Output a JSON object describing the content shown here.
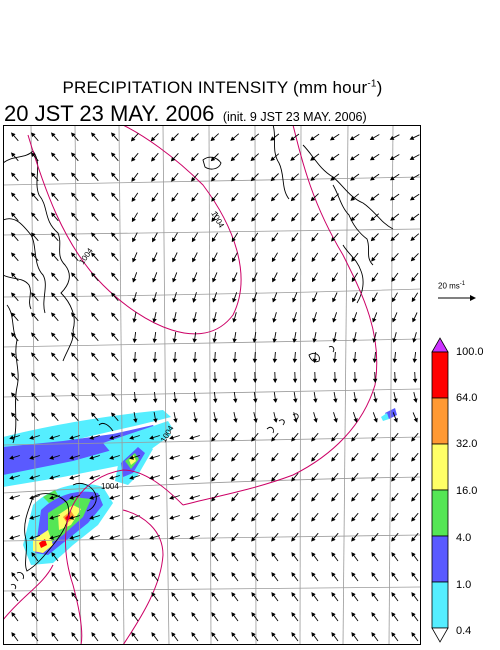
{
  "title": {
    "main": "PRECIPITATION INTENSITY (mm hour",
    "exp": "-1",
    "close": ")"
  },
  "subtitle": {
    "valid": "20 JST 23 MAY. 2006",
    "init": "(init. 9 JST 23 MAY. 2006)"
  },
  "reference_vector": {
    "label": "20 ms",
    "exp": "-1",
    "speed": 20
  },
  "colorbar": {
    "levels": [
      "100.0",
      "64.0",
      "32.0",
      "16.0",
      "4.0",
      "1.0",
      "0.4"
    ],
    "colors": [
      "#ff0000",
      "#ff9933",
      "#ffff66",
      "#55e655",
      "#5a5aff",
      "#55eeff"
    ],
    "top_arrow_color": "#cc33ff",
    "bottom_arrow_color": "#ffffff"
  },
  "isobars": [
    {
      "label": "1004",
      "color": "#cc0066"
    },
    {
      "label": "1004",
      "color": "#cc0066"
    },
    {
      "label": "1004",
      "color": "#cc0066"
    },
    {
      "label": "1004",
      "color": "#cc0066"
    }
  ],
  "colors": {
    "coastline": "#000000",
    "grid": "#9a9a9a",
    "isobar": "#cc0066",
    "wind": "#000000"
  },
  "legend_icons": {
    "ref_arrow": "right-arrow-icon"
  }
}
